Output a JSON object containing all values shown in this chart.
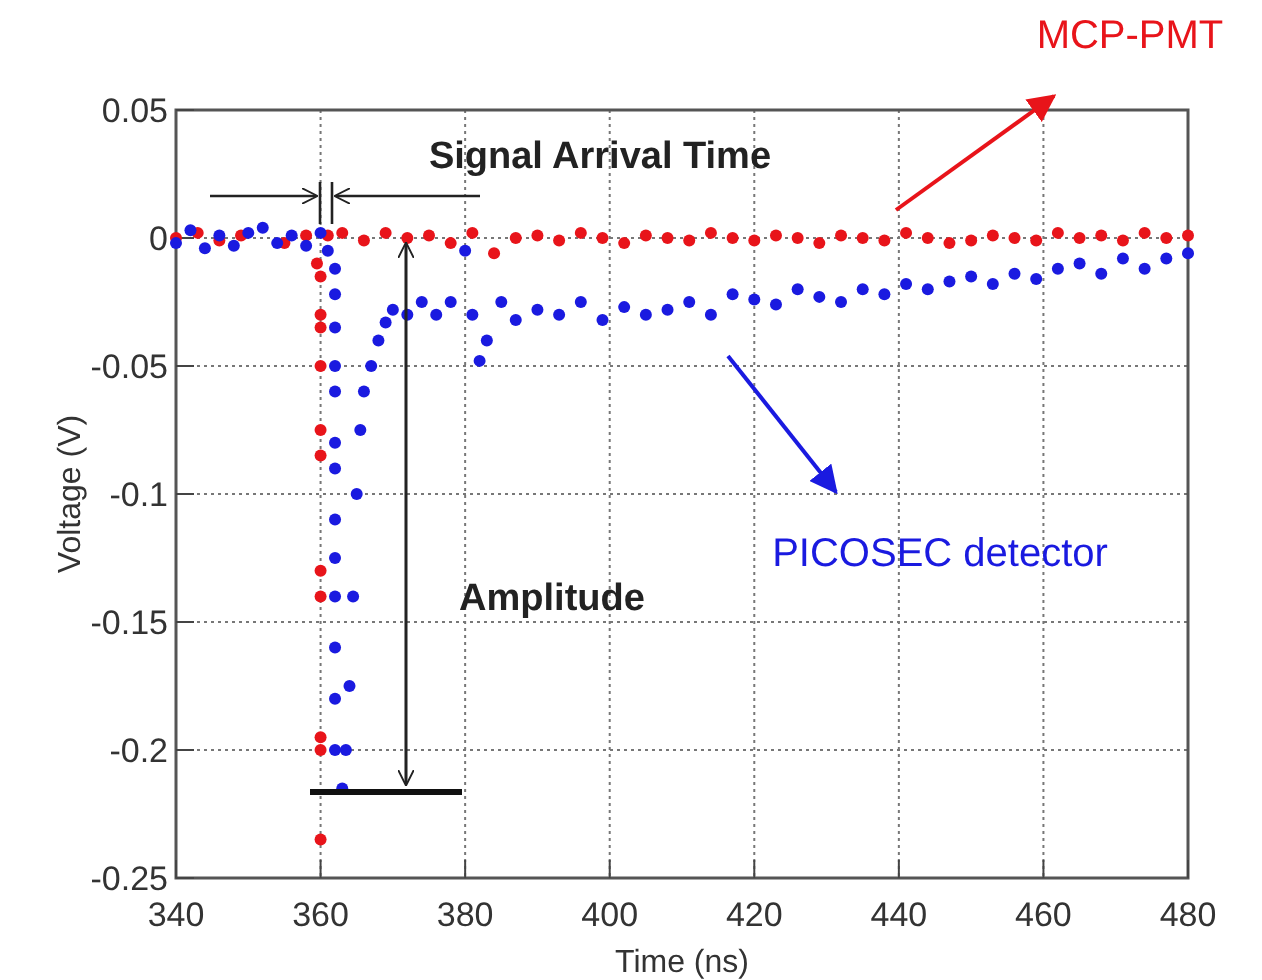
{
  "chart_data": {
    "type": "scatter",
    "xlabel": "Time (ns)",
    "ylabel": "Voltage (V)",
    "xlim": [
      340,
      480
    ],
    "xticks": [
      340,
      360,
      380,
      400,
      420,
      440,
      460,
      480
    ],
    "ylim": [
      -0.25,
      0.05
    ],
    "yticks": [
      -0.25,
      -0.2,
      -0.15,
      -0.1,
      -0.05,
      0,
      0.05
    ],
    "grid": true,
    "legend": false,
    "marker": "circle",
    "annotations": [
      "Signal Arrival Time",
      "Amplitude"
    ],
    "series": [
      {
        "name": "MCP-PMT",
        "color": "#e8141a",
        "x": [
          340,
          343,
          346,
          349,
          355,
          358,
          359.5,
          360,
          360,
          360,
          360,
          360,
          360,
          360,
          360,
          360,
          360,
          360,
          361,
          363,
          366,
          369,
          372,
          375,
          378,
          381,
          384,
          387,
          390,
          393,
          396,
          399,
          402,
          405,
          408,
          411,
          414,
          417,
          420,
          423,
          426,
          429,
          432,
          435,
          438,
          441,
          444,
          447,
          450,
          453,
          456,
          459,
          462,
          465,
          468,
          471,
          474,
          477,
          480
        ],
        "values": [
          0,
          0.002,
          -0.001,
          0.001,
          -0.002,
          0.001,
          -0.01,
          -0.015,
          -0.03,
          -0.035,
          -0.05,
          -0.075,
          -0.085,
          -0.13,
          -0.14,
          -0.195,
          -0.2,
          -0.235,
          0.001,
          0.002,
          -0.001,
          0.002,
          0,
          0.001,
          -0.002,
          0.002,
          -0.006,
          0,
          0.001,
          -0.001,
          0.002,
          0,
          -0.002,
          0.001,
          0,
          -0.001,
          0.002,
          0,
          -0.001,
          0.001,
          0,
          -0.002,
          0.001,
          0,
          -0.001,
          0.002,
          0,
          -0.002,
          -0.001,
          0.001,
          0,
          -0.001,
          0.002,
          0,
          0.001,
          -0.001,
          0.002,
          0,
          0.001
        ]
      },
      {
        "name": "PICOSEC detector",
        "color": "#1a1ae0",
        "x": [
          340,
          342,
          344,
          346,
          348,
          350,
          352,
          354,
          356,
          358,
          360,
          361,
          362,
          362,
          362,
          362,
          362,
          362,
          362,
          362,
          362,
          362,
          362,
          362,
          362,
          363,
          363.5,
          364,
          364.5,
          365,
          365.5,
          366,
          367,
          368,
          369,
          370,
          372,
          374,
          376,
          378,
          380,
          381,
          382,
          383,
          385,
          387,
          390,
          393,
          396,
          399,
          402,
          405,
          408,
          411,
          414,
          417,
          420,
          423,
          426,
          429,
          432,
          435,
          438,
          441,
          444,
          447,
          450,
          453,
          456,
          459,
          462,
          465,
          468,
          471,
          474,
          477,
          480
        ],
        "values": [
          -0.002,
          0.003,
          -0.004,
          0.001,
          -0.003,
          0.002,
          0.004,
          -0.002,
          0.001,
          -0.003,
          0.002,
          -0.005,
          -0.012,
          -0.022,
          -0.035,
          -0.05,
          -0.06,
          -0.08,
          -0.09,
          -0.11,
          -0.125,
          -0.14,
          -0.16,
          -0.18,
          -0.2,
          -0.215,
          -0.2,
          -0.175,
          -0.14,
          -0.1,
          -0.075,
          -0.06,
          -0.05,
          -0.04,
          -0.033,
          -0.028,
          -0.03,
          -0.025,
          -0.03,
          -0.025,
          -0.005,
          -0.03,
          -0.048,
          -0.04,
          -0.025,
          -0.032,
          -0.028,
          -0.03,
          -0.025,
          -0.032,
          -0.027,
          -0.03,
          -0.028,
          -0.025,
          -0.03,
          -0.022,
          -0.024,
          -0.026,
          -0.02,
          -0.023,
          -0.025,
          -0.02,
          -0.022,
          -0.018,
          -0.02,
          -0.017,
          -0.015,
          -0.018,
          -0.014,
          -0.016,
          -0.012,
          -0.01,
          -0.014,
          -0.008,
          -0.012,
          -0.008,
          -0.006
        ]
      }
    ]
  }
}
